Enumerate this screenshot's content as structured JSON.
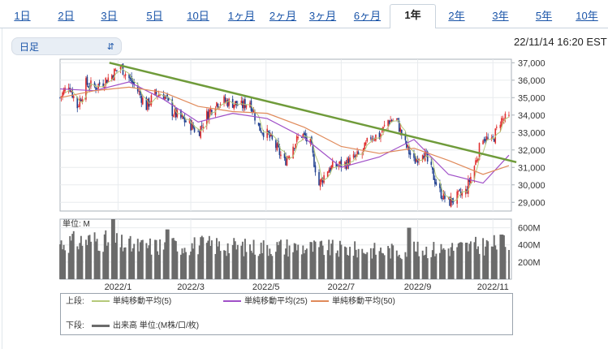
{
  "tabs": [
    {
      "label": "1日",
      "active": false
    },
    {
      "label": "2日",
      "active": false
    },
    {
      "label": "3日",
      "active": false
    },
    {
      "label": "5日",
      "active": false
    },
    {
      "label": "10日",
      "active": false
    },
    {
      "label": "1ヶ月",
      "active": false
    },
    {
      "label": "2ヶ月",
      "active": false
    },
    {
      "label": "3ヶ月",
      "active": false
    },
    {
      "label": "6ヶ月",
      "active": false
    },
    {
      "label": "1年",
      "active": true
    },
    {
      "label": "2年",
      "active": false
    },
    {
      "label": "3年",
      "active": false
    },
    {
      "label": "5年",
      "active": false
    },
    {
      "label": "10年",
      "active": false
    }
  ],
  "period_select": {
    "value": "日足"
  },
  "timestamp": "22/11/14 16:20 EST",
  "legend": {
    "upper_label": "上段:",
    "lower_label": "下段:",
    "ma5": "単純移動平均(5)",
    "ma25": "単純移動平均(25)",
    "ma50": "単純移動平均(50)",
    "volume": "出来高 単位:(M株/口/枚)"
  },
  "colors": {
    "price_up": "#e03030",
    "price_down": "#1f3f8f",
    "ma5": "#b5c97a",
    "ma25": "#a050c8",
    "ma50": "#e08a5a",
    "trendline": "#6f9b3a",
    "volume": "#6b6b6b",
    "accent": "#1a54a8"
  },
  "chart_data": [
    {
      "type": "candlestick",
      "title": "",
      "ylim": [
        28500,
        37200
      ],
      "yticks": [
        "37,000",
        "36,000",
        "35,000",
        "34,000",
        "33,000",
        "32,000",
        "31,000",
        "30,000",
        "29,000"
      ],
      "xticks": [
        "2022/1",
        "2022/3",
        "2022/5",
        "2022/7",
        "2022/9",
        "2022/11"
      ],
      "close_path": [
        [
          "2021/11/15",
          35000
        ],
        [
          "2021/11/22",
          35800
        ],
        [
          "2021/11/29",
          34500
        ],
        [
          "2021/12/06",
          35800
        ],
        [
          "2021/12/13",
          35600
        ],
        [
          "2021/12/20",
          35900
        ],
        [
          "2021/12/27",
          36300
        ],
        [
          "2022/01/03",
          36800
        ],
        [
          "2022/01/10",
          36100
        ],
        [
          "2022/01/17",
          35400
        ],
        [
          "2022/01/24",
          34500
        ],
        [
          "2022/01/31",
          35200
        ],
        [
          "2022/02/07",
          35200
        ],
        [
          "2022/02/14",
          34200
        ],
        [
          "2022/02/21",
          33800
        ],
        [
          "2022/02/28",
          33500
        ],
        [
          "2022/03/07",
          33000
        ],
        [
          "2022/03/14",
          34000
        ],
        [
          "2022/03/21",
          34700
        ],
        [
          "2022/03/28",
          34800
        ],
        [
          "2022/04/04",
          34700
        ],
        [
          "2022/04/11",
          34500
        ],
        [
          "2022/04/18",
          34800
        ],
        [
          "2022/04/25",
          33300
        ],
        [
          "2022/05/02",
          32900
        ],
        [
          "2022/05/09",
          32200
        ],
        [
          "2022/05/16",
          31300
        ],
        [
          "2022/05/23",
          32300
        ],
        [
          "2022/05/30",
          32900
        ],
        [
          "2022/06/06",
          32300
        ],
        [
          "2022/06/13",
          30000
        ],
        [
          "2022/06/20",
          30900
        ],
        [
          "2022/06/27",
          31100
        ],
        [
          "2022/07/04",
          31200
        ],
        [
          "2022/07/11",
          31500
        ],
        [
          "2022/07/18",
          31800
        ],
        [
          "2022/07/25",
          32800
        ],
        [
          "2022/08/01",
          32800
        ],
        [
          "2022/08/08",
          33700
        ],
        [
          "2022/08/15",
          33700
        ],
        [
          "2022/08/22",
          32300
        ],
        [
          "2022/08/29",
          31300
        ],
        [
          "2022/09/05",
          32000
        ],
        [
          "2022/09/12",
          30800
        ],
        [
          "2022/09/19",
          29600
        ],
        [
          "2022/09/26",
          29000
        ],
        [
          "2022/10/03",
          29300
        ],
        [
          "2022/10/10",
          29600
        ],
        [
          "2022/10/17",
          31100
        ],
        [
          "2022/10/24",
          32800
        ],
        [
          "2022/10/31",
          32400
        ],
        [
          "2022/11/07",
          33700
        ],
        [
          "2022/11/14",
          33800
        ]
      ],
      "moving_averages": [
        {
          "name": "単純移動平均(25)",
          "values": [
            [
              "2021/11/15",
              35500
            ],
            [
              "2021/12/13",
              35400
            ],
            [
              "2022/01/10",
              35900
            ],
            [
              "2022/02/07",
              34900
            ],
            [
              "2022/03/07",
              33600
            ],
            [
              "2022/04/04",
              34100
            ],
            [
              "2022/05/02",
              33800
            ],
            [
              "2022/06/01",
              32700
            ],
            [
              "2022/07/01",
              31000
            ],
            [
              "2022/08/01",
              31600
            ],
            [
              "2022/08/29",
              32600
            ],
            [
              "2022/09/26",
              30600
            ],
            [
              "2022/10/24",
              30100
            ],
            [
              "2022/11/14",
              31700
            ]
          ]
        },
        {
          "name": "単純移動平均(50)",
          "values": [
            [
              "2021/11/15",
              35000
            ],
            [
              "2021/12/13",
              35400
            ],
            [
              "2022/01/10",
              35600
            ],
            [
              "2022/02/07",
              35300
            ],
            [
              "2022/03/07",
              34500
            ],
            [
              "2022/04/04",
              34200
            ],
            [
              "2022/05/02",
              34100
            ],
            [
              "2022/06/01",
              33300
            ],
            [
              "2022/07/01",
              32200
            ],
            [
              "2022/08/01",
              31800
            ],
            [
              "2022/08/29",
              32100
            ],
            [
              "2022/09/26",
              31400
            ],
            [
              "2022/10/24",
              30600
            ],
            [
              "2022/11/14",
              31100
            ]
          ]
        }
      ],
      "trendline": [
        [
          "2021/12/25",
          37000
        ],
        [
          "2022/11/20",
          31300
        ]
      ]
    },
    {
      "type": "bar",
      "title": "",
      "unit_label": "単位: M",
      "ylim": [
        0,
        700
      ],
      "yticks": [
        "600M",
        "400M",
        "200M"
      ],
      "x": [
        "2021/11",
        "2021/12",
        "2022/01",
        "2022/02",
        "2022/03",
        "2022/04",
        "2022/05",
        "2022/06",
        "2022/07",
        "2022/08",
        "2022/09",
        "2022/10",
        "2022/11"
      ],
      "values": [
        420,
        460,
        380,
        390,
        400,
        370,
        380,
        360,
        340,
        330,
        350,
        380,
        420
      ],
      "peaks": [
        [
          "2021/12/28",
          700
        ],
        [
          "2022/02/10",
          580
        ],
        [
          "2022/08/25",
          600
        ],
        [
          "2022/11/08",
          520
        ]
      ]
    }
  ]
}
